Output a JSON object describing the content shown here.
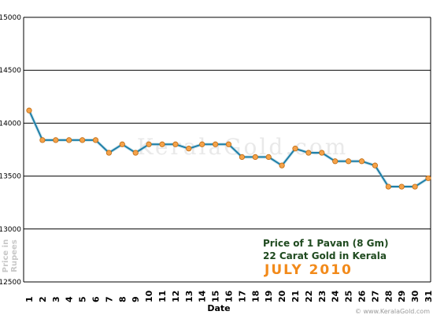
{
  "chart_data": {
    "type": "line",
    "title_lines": [
      "Price of 1 Pavan (8 Gm)",
      "22 Carat Gold in Kerala"
    ],
    "subtitle": "JULY 2010",
    "xlabel": "Date",
    "ylabel_lines": [
      "Price in",
      "Rupees"
    ],
    "watermark": "KeralaGold.com",
    "credit": "© www.KeralaGold.com",
    "ylim": [
      12500,
      15000
    ],
    "y_ticks": [
      "12500",
      "13000",
      "13500",
      "14000",
      "14500",
      "15000"
    ],
    "x": [
      1,
      2,
      3,
      4,
      5,
      6,
      7,
      8,
      9,
      10,
      11,
      12,
      13,
      14,
      15,
      16,
      17,
      18,
      19,
      20,
      21,
      22,
      23,
      24,
      25,
      26,
      27,
      28,
      29,
      30,
      31
    ],
    "x_tick_labels": [
      "1",
      "2",
      "3",
      "4",
      "5",
      "6",
      "7",
      "8",
      "9",
      "10",
      "11",
      "12",
      "13",
      "14",
      "15",
      "16",
      "17",
      "18",
      "19",
      "20",
      "21",
      "22",
      "23",
      "24",
      "25",
      "26",
      "27",
      "28",
      "29",
      "30",
      "31"
    ],
    "series": [
      {
        "values": [
          14120,
          13840,
          13840,
          13840,
          13840,
          13840,
          13720,
          13800,
          13720,
          13800,
          13800,
          13800,
          13760,
          13800,
          13800,
          13800,
          13680,
          13680,
          13680,
          13600,
          13760,
          13720,
          13720,
          13640,
          13640,
          13640,
          13600,
          13400,
          13400,
          13400,
          13480
        ]
      }
    ],
    "grid": "horizontal",
    "colors": {
      "line": "#1e7fa8",
      "marker": "#f4a24a",
      "marker_edge": "#c06b10",
      "grid": "#000000"
    }
  }
}
